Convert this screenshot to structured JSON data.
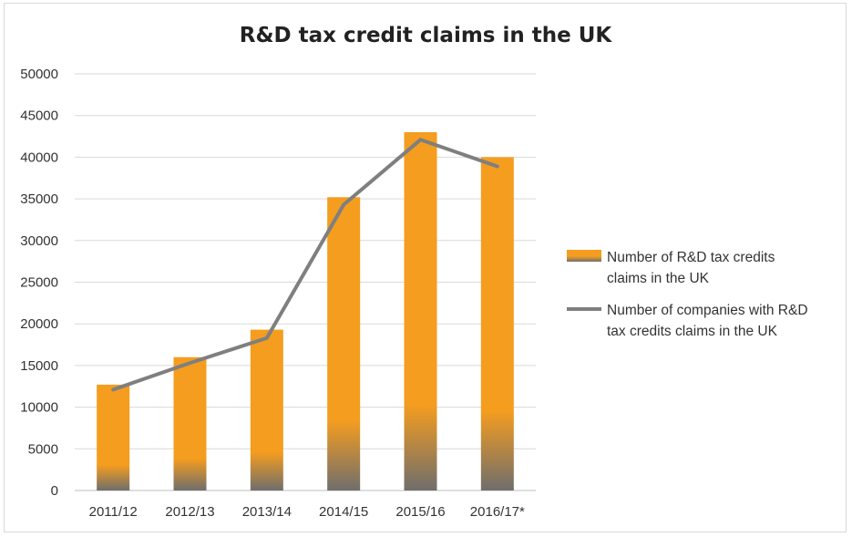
{
  "chart_data": {
    "type": "bar",
    "title": "R&D tax credit claims in the UK",
    "categories": [
      "2011/12",
      "2012/13",
      "2013/14",
      "2014/15",
      "2015/16",
      "2016/17*"
    ],
    "ylim": [
      0,
      50000
    ],
    "yticks": [
      0,
      5000,
      10000,
      15000,
      20000,
      25000,
      30000,
      35000,
      40000,
      45000,
      50000
    ],
    "grid": true,
    "legend_position": "right",
    "series": [
      {
        "name": "Number of R&D tax credits claims in the UK",
        "type": "bar",
        "values": [
          12700,
          16000,
          19300,
          35200,
          43000,
          40000
        ],
        "color": "#f59d1f"
      },
      {
        "name": "Number of companies with R&D tax credits claims in the UK",
        "type": "line",
        "values": [
          12100,
          15300,
          18300,
          34300,
          42100,
          38900
        ],
        "color": "#7f7f7f"
      }
    ]
  },
  "legend": {
    "bar_lines": [
      "Number of R&D tax credits",
      "claims in the UK"
    ],
    "line_lines": [
      "Number of companies with R&D",
      "tax credits claims in the UK"
    ]
  }
}
